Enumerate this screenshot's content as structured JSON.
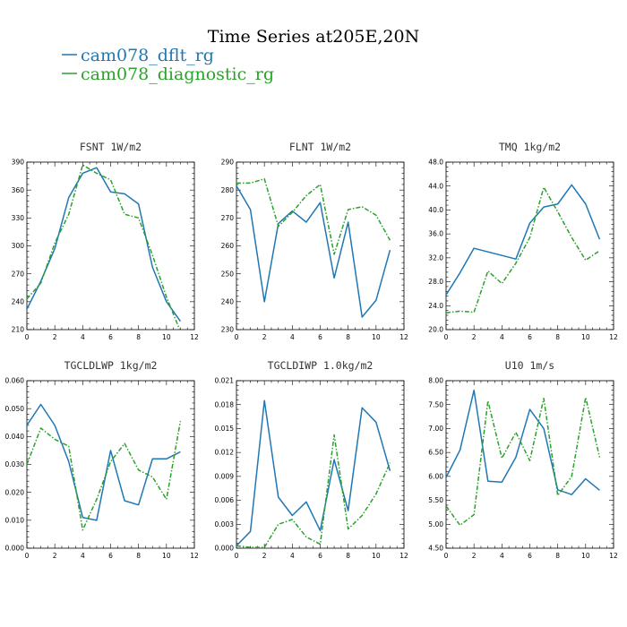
{
  "figure": {
    "title": "Time Series at205E,20N",
    "legend": [
      {
        "name": "cam078_dflt_rg",
        "color": "#1f77b4",
        "dash": "solid"
      },
      {
        "name": "cam078_diagnostic_rg",
        "color": "#2ca02c",
        "dash": "dashdot"
      }
    ]
  },
  "chart_data": [
    {
      "type": "line",
      "title": "FSNT   1W/m2",
      "x": [
        0,
        1,
        2,
        3,
        4,
        5,
        6,
        7,
        8,
        9,
        10,
        11
      ],
      "xlim": [
        0,
        12
      ],
      "xticks": [
        0,
        2,
        4,
        6,
        8,
        10,
        12
      ],
      "xtick_labels": [
        "0",
        "2",
        "4",
        "6",
        "8",
        "10",
        "12"
      ],
      "ylim": [
        210,
        390
      ],
      "yticks": [
        210,
        240,
        270,
        300,
        330,
        360,
        390
      ],
      "ytick_labels": [
        "210",
        "240",
        "270",
        "300",
        "330",
        "360",
        "390"
      ],
      "series": [
        {
          "name": "cam078_dflt_rg",
          "values": [
            232,
            262,
            297,
            352,
            378,
            384,
            358,
            356,
            345,
            277,
            240,
            219
          ]
        },
        {
          "name": "cam078_diagnostic_rg",
          "values": [
            243,
            260,
            303,
            334,
            387,
            378,
            371,
            334,
            330,
            290,
            245,
            208
          ]
        }
      ]
    },
    {
      "type": "line",
      "title": "FLNT   1W/m2",
      "x": [
        0,
        1,
        2,
        3,
        4,
        5,
        6,
        7,
        8,
        9,
        10,
        11
      ],
      "xlim": [
        0,
        12
      ],
      "xticks": [
        0,
        2,
        4,
        6,
        8,
        10,
        12
      ],
      "xtick_labels": [
        "0",
        "2",
        "4",
        "6",
        "8",
        "10",
        "12"
      ],
      "ylim": [
        230,
        290
      ],
      "yticks": [
        230,
        240,
        250,
        260,
        270,
        280,
        290
      ],
      "ytick_labels": [
        "230",
        "240",
        "250",
        "260",
        "270",
        "280",
        "290"
      ],
      "series": [
        {
          "name": "cam078_dflt_rg",
          "values": [
            281.5,
            273,
            240,
            268,
            272.5,
            268.5,
            275.5,
            248.5,
            268.5,
            234.5,
            240.5,
            258.5
          ]
        },
        {
          "name": "cam078_diagnostic_rg",
          "values": [
            282.5,
            282.5,
            284,
            267,
            272,
            278,
            282,
            257,
            273,
            274,
            271,
            262
          ]
        }
      ]
    },
    {
      "type": "line",
      "title": "TMQ   1kg/m2",
      "x": [
        0,
        1,
        2,
        3,
        4,
        5,
        6,
        7,
        8,
        9,
        10,
        11
      ],
      "xlim": [
        0,
        12
      ],
      "xticks": [
        0,
        2,
        4,
        6,
        8,
        10,
        12
      ],
      "xtick_labels": [
        "0",
        "2",
        "4",
        "6",
        "8",
        "10",
        "12"
      ],
      "ylim": [
        20,
        48
      ],
      "yticks": [
        20,
        24,
        28,
        32,
        36,
        40,
        44,
        48
      ],
      "ytick_labels": [
        "20.0",
        "24.0",
        "28.0",
        "32.0",
        "36.0",
        "40.0",
        "44.0",
        "48.0"
      ],
      "series": [
        {
          "name": "cam078_dflt_rg",
          "values": [
            25.8,
            29.5,
            33.6,
            33,
            32.4,
            31.8,
            37.8,
            40.5,
            41,
            44.2,
            41,
            35.1
          ]
        },
        {
          "name": "cam078_diagnostic_rg",
          "values": [
            22.8,
            23.1,
            22.9,
            29.8,
            27.7,
            31.1,
            35.4,
            43.8,
            39.7,
            35.4,
            31.6,
            33.2
          ]
        }
      ]
    },
    {
      "type": "line",
      "title": "TGCLDLWP   1kg/m2",
      "x": [
        0,
        1,
        2,
        3,
        4,
        5,
        6,
        7,
        8,
        9,
        10,
        11
      ],
      "xlim": [
        0,
        12
      ],
      "xticks": [
        0,
        2,
        4,
        6,
        8,
        10,
        12
      ],
      "xtick_labels": [
        "0",
        "2",
        "4",
        "6",
        "8",
        "10",
        "12"
      ],
      "ylim": [
        0,
        0.06
      ],
      "yticks": [
        0,
        0.01,
        0.02,
        0.03,
        0.04,
        0.05,
        0.06
      ],
      "ytick_labels": [
        "0.000",
        "0.010",
        "0.020",
        "0.030",
        "0.040",
        "0.050",
        "0.060"
      ],
      "series": [
        {
          "name": "cam078_dflt_rg",
          "values": [
            0.044,
            0.0515,
            0.044,
            0.031,
            0.011,
            0.01,
            0.035,
            0.017,
            0.0155,
            0.032,
            0.032,
            0.0345
          ]
        },
        {
          "name": "cam078_diagnostic_rg",
          "values": [
            0.03,
            0.043,
            0.039,
            0.0365,
            0.0065,
            0.0175,
            0.031,
            0.0375,
            0.028,
            0.0255,
            0.0175,
            0.0455
          ]
        }
      ]
    },
    {
      "type": "line",
      "title": "TGCLDIWP   1.0kg/m2",
      "x": [
        0,
        1,
        2,
        3,
        4,
        5,
        6,
        7,
        8,
        9,
        10,
        11
      ],
      "xlim": [
        0,
        12
      ],
      "xticks": [
        0,
        2,
        4,
        6,
        8,
        10,
        12
      ],
      "xtick_labels": [
        "0",
        "2",
        "4",
        "6",
        "8",
        "10",
        "12"
      ],
      "ylim": [
        0,
        0.021
      ],
      "yticks": [
        0,
        0.003,
        0.006,
        0.009,
        0.012,
        0.015,
        0.018,
        0.021
      ],
      "ytick_labels": [
        "0.000",
        "0.003",
        "0.006",
        "0.009",
        "0.012",
        "0.015",
        "0.018",
        "0.021"
      ],
      "series": [
        {
          "name": "cam078_dflt_rg",
          "values": [
            0.0003,
            0.0021,
            0.0185,
            0.0064,
            0.0041,
            0.0058,
            0.0022,
            0.0111,
            0.0047,
            0.0176,
            0.0158,
            0.0097
          ]
        },
        {
          "name": "cam078_diagnostic_rg",
          "values": [
            0.0003,
            0.0001,
            0.0001,
            0.003,
            0.0036,
            0.0014,
            0.0005,
            0.0142,
            0.0024,
            0.0041,
            0.0068,
            0.0107
          ]
        }
      ]
    },
    {
      "type": "line",
      "title": "U10   1m/s",
      "x": [
        0,
        1,
        2,
        3,
        4,
        5,
        6,
        7,
        8,
        9,
        10,
        11
      ],
      "xlim": [
        0,
        12
      ],
      "xticks": [
        0,
        2,
        4,
        6,
        8,
        10,
        12
      ],
      "xtick_labels": [
        "0",
        "2",
        "4",
        "6",
        "8",
        "10",
        "12"
      ],
      "ylim": [
        4.5,
        8.0
      ],
      "yticks": [
        4.5,
        5.0,
        5.5,
        6.0,
        6.5,
        7.0,
        7.5,
        8.0
      ],
      "ytick_labels": [
        "4.50",
        "5.00",
        "5.50",
        "6.00",
        "6.50",
        "7.00",
        "7.50",
        "8.00"
      ],
      "series": [
        {
          "name": "cam078_dflt_rg",
          "values": [
            5.98,
            6.55,
            7.8,
            5.9,
            5.88,
            6.4,
            7.4,
            7.0,
            5.72,
            5.62,
            5.95,
            5.71
          ]
        },
        {
          "name": "cam078_diagnostic_rg",
          "values": [
            5.38,
            4.98,
            5.2,
            7.58,
            6.38,
            6.92,
            6.33,
            7.63,
            5.6,
            6.0,
            7.65,
            6.4
          ]
        }
      ]
    }
  ]
}
